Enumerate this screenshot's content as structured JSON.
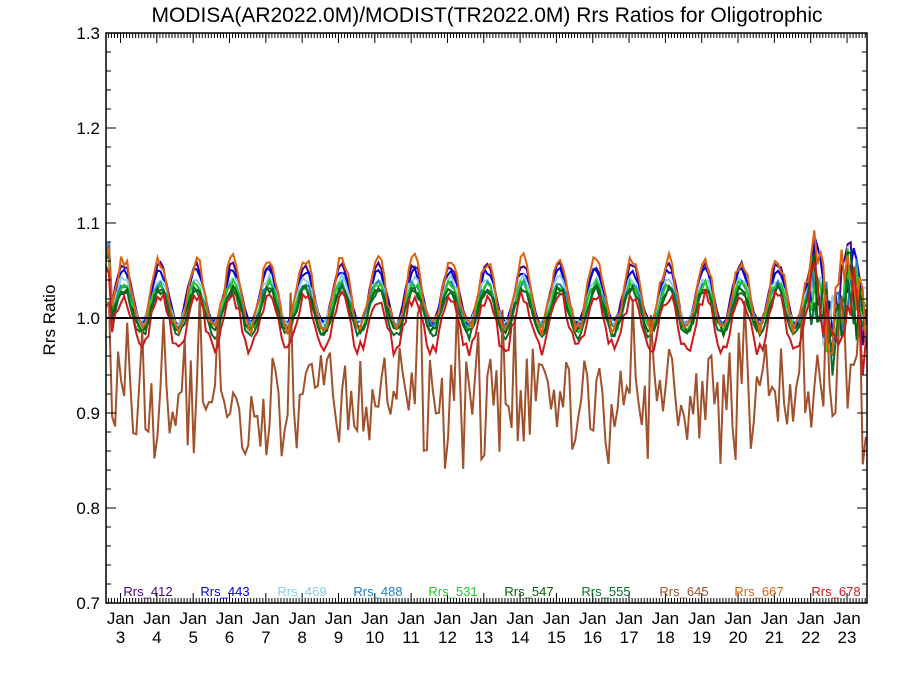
{
  "chart_data": {
    "type": "line",
    "title": "MODISA(AR2022.0M)/MODIST(TR2022.0M)  Rrs Ratios for Oligotrophic",
    "xlabel": "",
    "ylabel": "Rrs Ratio",
    "ylim": [
      0.7,
      1.3
    ],
    "y_ticks": [
      "0.7",
      "0.8",
      "0.9",
      "1.0",
      "1.1",
      "1.2",
      "1.3"
    ],
    "x_year_range": [
      2002.6,
      2023.55
    ],
    "x_ticks": [
      {
        "month": "Jan",
        "year": "3"
      },
      {
        "month": "Jan",
        "year": "4"
      },
      {
        "month": "Jan",
        "year": "5"
      },
      {
        "month": "Jan",
        "year": "6"
      },
      {
        "month": "Jan",
        "year": "7"
      },
      {
        "month": "Jan",
        "year": "8"
      },
      {
        "month": "Jan",
        "year": "9"
      },
      {
        "month": "Jan",
        "year": "10"
      },
      {
        "month": "Jan",
        "year": "11"
      },
      {
        "month": "Jan",
        "year": "12"
      },
      {
        "month": "Jan",
        "year": "13"
      },
      {
        "month": "Jan",
        "year": "14"
      },
      {
        "month": "Jan",
        "year": "15"
      },
      {
        "month": "Jan",
        "year": "16"
      },
      {
        "month": "Jan",
        "year": "17"
      },
      {
        "month": "Jan",
        "year": "18"
      },
      {
        "month": "Jan",
        "year": "19"
      },
      {
        "month": "Jan",
        "year": "20"
      },
      {
        "month": "Jan",
        "year": "21"
      },
      {
        "month": "Jan",
        "year": "22"
      },
      {
        "month": "Jan",
        "year": "23"
      }
    ],
    "reference_line": {
      "y": 1.0,
      "color": "#000000"
    },
    "grid": false,
    "legend_placement": "bottom",
    "series": [
      {
        "name": "Rrs_412",
        "color": "#4b0082"
      },
      {
        "name": "Rrs_443",
        "color": "#0000dd"
      },
      {
        "name": "Rrs_469",
        "color": "#87ceeb"
      },
      {
        "name": "Rrs_488",
        "color": "#1e7fc8"
      },
      {
        "name": "Rrs_531",
        "color": "#22cc22"
      },
      {
        "name": "Rrs_547",
        "color": "#006400"
      },
      {
        "name": "Rrs_555",
        "color": "#0a6e2a"
      },
      {
        "name": "Rrs_645",
        "color": "#a0522d"
      },
      {
        "name": "Rrs_667",
        "color": "#e06010"
      },
      {
        "name": "Rrs_678",
        "color": "#cc1a1a"
      }
    ]
  }
}
